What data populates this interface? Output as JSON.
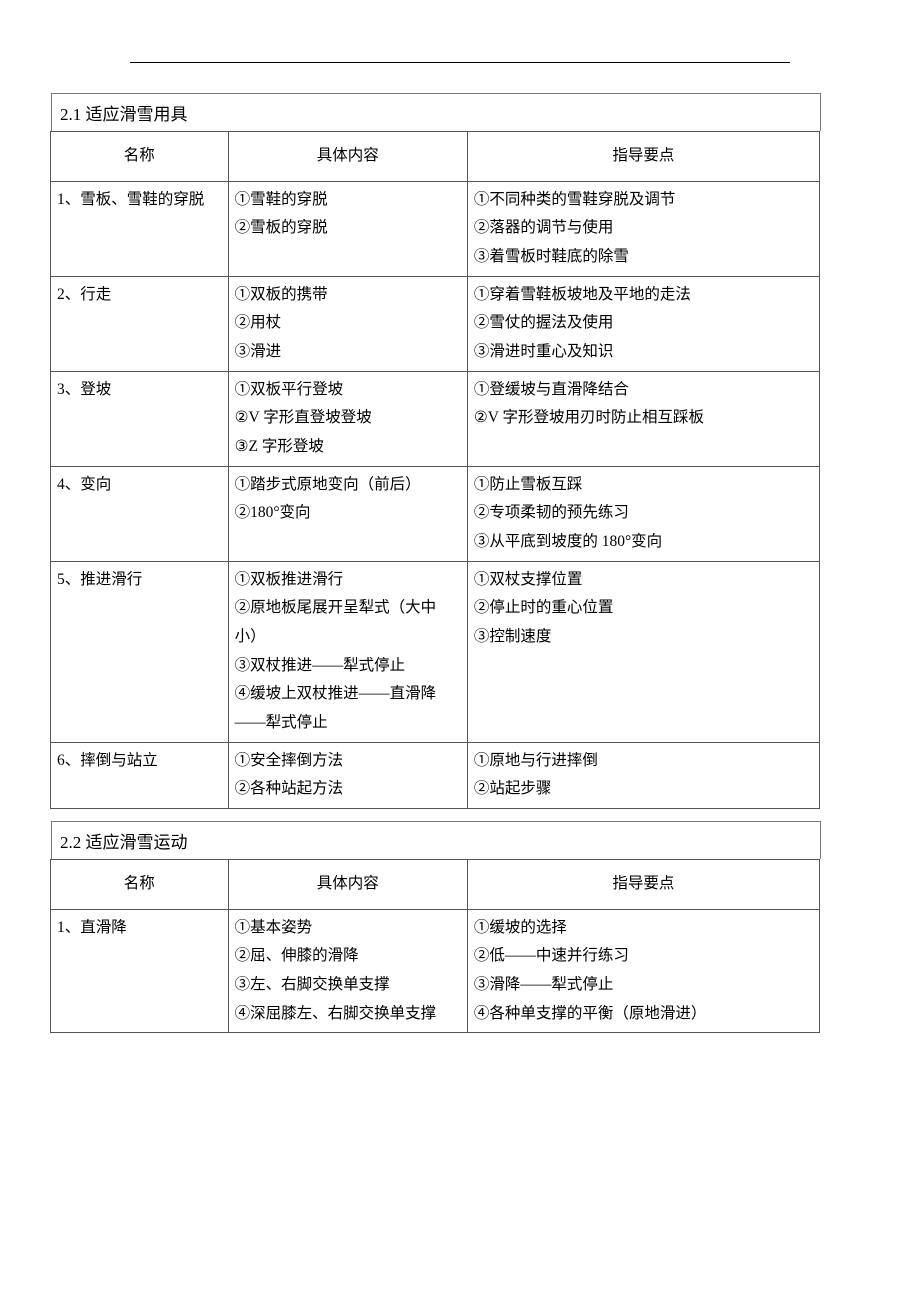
{
  "section21": {
    "title": "2.1 适应滑雪用具",
    "columns": [
      "名称",
      "具体内容",
      "指导要点"
    ],
    "rows": [
      {
        "name": "1、雪板、雪鞋的穿脱",
        "detail": "①雪鞋的穿脱\n②雪板的穿脱",
        "note": "①不同种类的雪鞋穿脱及调节\n②落器的调节与使用\n③着雪板时鞋底的除雪"
      },
      {
        "name": "2、行走",
        "detail": "①双板的携带\n②用杖\n③滑进",
        "note": "①穿着雪鞋板坡地及平地的走法\n②雪仗的握法及使用\n③滑进时重心及知识"
      },
      {
        "name": "3、登坡",
        "detail": "①双板平行登坡\n②V 字形直登坡登坡\n③Z 字形登坡",
        "note": "①登缓坡与直滑降结合\n②V 字形登坡用刃时防止相互踩板"
      },
      {
        "name": "4、变向",
        "detail": "①踏步式原地变向（前后）\n②180°变向",
        "note": "①防止雪板互踩\n②专项柔韧的预先练习\n③从平底到坡度的 180°变向"
      },
      {
        "name": "5、推进滑行",
        "detail": "①双板推进滑行\n②原地板尾展开呈犁式（大中小）\n③双杖推进——犁式停止\n④缓坡上双杖推进——直滑降——犁式停止",
        "note": "①双杖支撑位置\n②停止时的重心位置\n③控制速度"
      },
      {
        "name": "6、摔倒与站立",
        "detail": "①安全摔倒方法\n②各种站起方法",
        "note": "①原地与行进摔倒\n②站起步骤"
      }
    ]
  },
  "section22": {
    "title": "2.2 适应滑雪运动",
    "columns": [
      "名称",
      "具体内容",
      "指导要点"
    ],
    "rows": [
      {
        "name": "1、直滑降",
        "detail": "①基本姿势\n②屈、伸膝的滑降\n③左、右脚交换单支撑\n④深屈膝左、右脚交换单支撑",
        "note": "①缓坡的选择\n②低——中速并行练习\n③滑降——犁式停止\n④各种单支撑的平衡（原地滑进）"
      }
    ]
  }
}
